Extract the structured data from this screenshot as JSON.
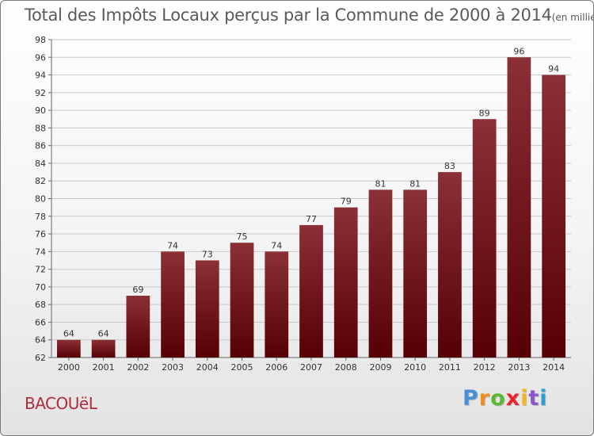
{
  "chart_data": {
    "type": "bar",
    "title": "Total des Impôts Locaux perçus par la Commune de 2000 à 2014",
    "unit": "(en milliers d'€)",
    "categories": [
      "2000",
      "2001",
      "2002",
      "2003",
      "2004",
      "2005",
      "2006",
      "2007",
      "2008",
      "2009",
      "2010",
      "2011",
      "2012",
      "2013",
      "2014"
    ],
    "values": [
      64,
      64,
      69,
      74,
      73,
      75,
      74,
      77,
      79,
      81,
      81,
      83,
      89,
      96,
      94
    ],
    "ylim": [
      62,
      98
    ],
    "yticks": [
      62,
      64,
      66,
      68,
      70,
      72,
      74,
      76,
      78,
      80,
      82,
      84,
      86,
      88,
      90,
      92,
      94,
      96,
      98
    ],
    "grid": true,
    "xlabel": "",
    "ylabel": ""
  },
  "footer": {
    "commune": "BACOUëL",
    "logo_letters": [
      "P",
      "r",
      "o",
      "x",
      "i",
      "t",
      "i"
    ],
    "logo_colors": [
      "#4a8fd6",
      "#f28a1c",
      "#5cb82e",
      "#e8262a",
      "#f2b61c",
      "#8a56c8",
      "#2aa0d6"
    ]
  },
  "colors": {
    "bar_top": "#8a3036",
    "bar_bottom": "#560006",
    "grid": "#c8c8c8"
  }
}
